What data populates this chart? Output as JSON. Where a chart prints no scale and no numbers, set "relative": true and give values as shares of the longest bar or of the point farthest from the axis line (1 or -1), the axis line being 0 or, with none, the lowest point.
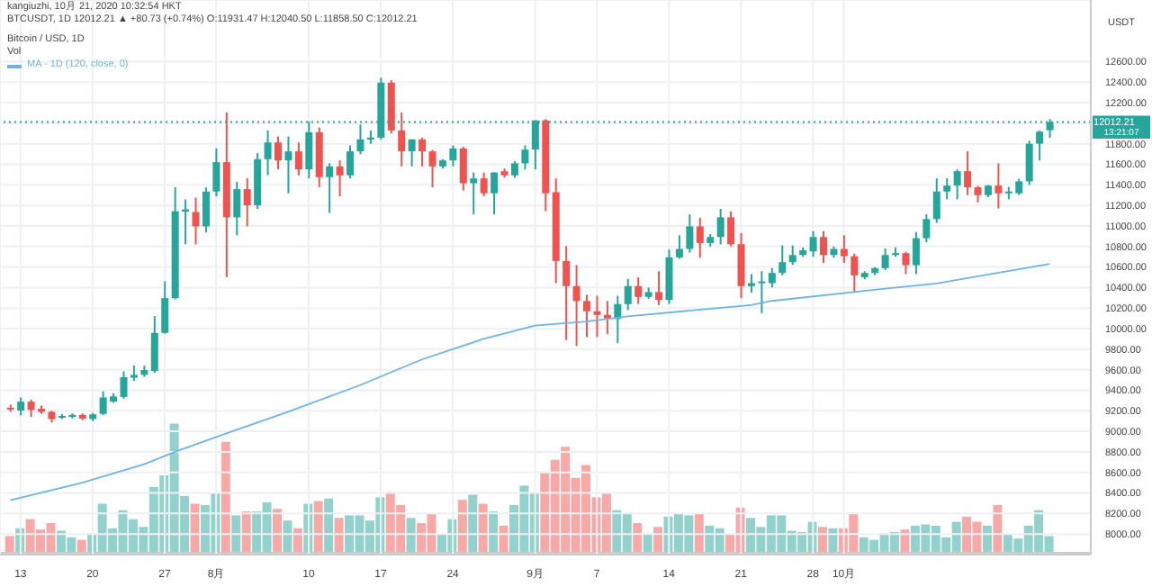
{
  "chart_data": [
    {
      "type": "candlestick",
      "title": "Bitcoin / USD, 1D",
      "ylabel": "USDT",
      "annotations": [
        "kangiuzhi, 10月 21, 2020 10:32:54 HKT",
        "BTCUSDT, 1D 12012.21 ▲ +80.73 (+0.74%) O:11931.47 H:12040.50 L:11858.50 C:12012.21",
        "Vol",
        "13:21:07"
      ],
      "x": [
        "2020-07-12",
        "2020-07-13",
        "2020-07-14",
        "2020-07-15",
        "2020-07-16",
        "2020-07-17",
        "2020-07-18",
        "2020-07-19",
        "2020-07-20",
        "2020-07-21",
        "2020-07-22",
        "2020-07-23",
        "2020-07-24",
        "2020-07-25",
        "2020-07-26",
        "2020-07-27",
        "2020-07-28",
        "2020-07-29",
        "2020-07-30",
        "2020-07-31",
        "2020-08-01",
        "2020-08-02",
        "2020-08-03",
        "2020-08-04",
        "2020-08-05",
        "2020-08-06",
        "2020-08-07",
        "2020-08-08",
        "2020-08-09",
        "2020-08-10",
        "2020-08-11",
        "2020-08-12",
        "2020-08-13",
        "2020-08-14",
        "2020-08-15",
        "2020-08-16",
        "2020-08-17",
        "2020-08-18",
        "2020-08-19",
        "2020-08-20",
        "2020-08-21",
        "2020-08-22",
        "2020-08-23",
        "2020-08-24",
        "2020-08-25",
        "2020-08-26",
        "2020-08-27",
        "2020-08-28",
        "2020-08-29",
        "2020-08-30",
        "2020-08-31",
        "2020-09-01",
        "2020-09-02",
        "2020-09-03",
        "2020-09-04",
        "2020-09-05",
        "2020-09-06",
        "2020-09-07",
        "2020-09-08",
        "2020-09-09",
        "2020-09-10",
        "2020-09-11",
        "2020-09-12",
        "2020-09-13",
        "2020-09-14",
        "2020-09-15",
        "2020-09-16",
        "2020-09-17",
        "2020-09-18",
        "2020-09-19",
        "2020-09-20",
        "2020-09-21",
        "2020-09-22",
        "2020-09-23",
        "2020-09-24",
        "2020-09-25",
        "2020-09-26",
        "2020-09-27",
        "2020-09-28",
        "2020-09-29",
        "2020-09-30",
        "2020-10-01",
        "2020-10-02",
        "2020-10-03",
        "2020-10-04",
        "2020-10-05",
        "2020-10-06",
        "2020-10-07",
        "2020-10-08",
        "2020-10-09",
        "2020-10-10",
        "2020-10-11",
        "2020-10-12",
        "2020-10-13",
        "2020-10-14",
        "2020-10-15",
        "2020-10-16",
        "2020-10-17",
        "2020-10-18",
        "2020-10-19",
        "2020-10-20",
        "2020-10-21"
      ],
      "ohlc": [
        [
          9230,
          9260,
          9190,
          9224
        ],
        [
          9202,
          9330,
          9155,
          9289
        ],
        [
          9289,
          9310,
          9140,
          9210
        ],
        [
          9220,
          9250,
          9170,
          9190
        ],
        [
          9190,
          9200,
          9085,
          9120
        ],
        [
          9140,
          9170,
          9120,
          9150
        ],
        [
          9140,
          9175,
          9125,
          9160
        ],
        [
          9160,
          9175,
          9110,
          9125
        ],
        [
          9120,
          9180,
          9100,
          9165
        ],
        [
          9170,
          9390,
          9160,
          9330
        ],
        [
          9290,
          9370,
          9280,
          9340
        ],
        [
          9335,
          9584,
          9318,
          9527
        ],
        [
          9522,
          9640,
          9490,
          9550
        ],
        [
          9550,
          9640,
          9530,
          9597
        ],
        [
          9587,
          10122,
          9570,
          9959
        ],
        [
          9959,
          10461,
          9950,
          10297
        ],
        [
          10297,
          11376,
          10285,
          11143
        ],
        [
          11140,
          11259,
          10821,
          11161
        ],
        [
          11136,
          11276,
          10821,
          10996
        ],
        [
          10996,
          11376,
          10938,
          11335
        ],
        [
          11335,
          11755,
          11288,
          11621
        ],
        [
          11621,
          12105,
          10501,
          11084
        ],
        [
          11084,
          11430,
          10909,
          11358
        ],
        [
          11358,
          11464,
          10996,
          11201
        ],
        [
          11201,
          11708,
          11166,
          11650
        ],
        [
          11650,
          11930,
          11493,
          11813
        ],
        [
          11813,
          11872,
          11551,
          11638
        ],
        [
          11638,
          11872,
          11318,
          11726
        ],
        [
          11726,
          11813,
          11493,
          11551
        ],
        [
          11551,
          12018,
          11463,
          11913
        ],
        [
          11913,
          11959,
          11376,
          11475
        ],
        [
          11475,
          11610,
          11126,
          11580
        ],
        [
          11580,
          11639,
          11288,
          11493
        ],
        [
          11493,
          11784,
          11463,
          11726
        ],
        [
          11726,
          11988,
          11697,
          11843
        ],
        [
          11840,
          11930,
          11800,
          11860
        ],
        [
          11860,
          12443,
          11840,
          12395
        ],
        [
          12395,
          12420,
          11900,
          11930
        ],
        [
          11930,
          12105,
          11580,
          11726
        ],
        [
          11726,
          11843,
          11580,
          11843
        ],
        [
          11843,
          11860,
          11580,
          11726
        ],
        [
          11726,
          11740,
          11376,
          11580
        ],
        [
          11580,
          11650,
          11560,
          11638
        ],
        [
          11638,
          11784,
          11580,
          11755
        ],
        [
          11755,
          11770,
          11346,
          11416
        ],
        [
          11416,
          11520,
          11113,
          11463
        ],
        [
          11463,
          11520,
          11290,
          11318
        ],
        [
          11318,
          11521,
          11113,
          11521
        ],
        [
          11533,
          11560,
          11470,
          11493
        ],
        [
          11493,
          11630,
          11470,
          11610
        ],
        [
          11610,
          11784,
          11550,
          11743
        ],
        [
          11743,
          12028,
          11550,
          12028
        ],
        [
          12028,
          12040,
          11143,
          11318
        ],
        [
          11329,
          11463,
          10443,
          10659
        ],
        [
          10659,
          10804,
          9889,
          10414
        ],
        [
          10414,
          10618,
          9831,
          10269
        ],
        [
          10269,
          10330,
          9918,
          10169
        ],
        [
          10169,
          10320,
          9918,
          10134
        ],
        [
          10134,
          10269,
          9947,
          10100
        ],
        [
          10094,
          10320,
          9859,
          10239
        ],
        [
          10239,
          10485,
          10180,
          10414
        ],
        [
          10414,
          10500,
          10240,
          10309
        ],
        [
          10309,
          10400,
          10290,
          10356
        ],
        [
          10356,
          10560,
          10230,
          10280
        ],
        [
          10280,
          10770,
          10240,
          10694
        ],
        [
          10694,
          10910,
          10680,
          10776
        ],
        [
          10776,
          11113,
          10740,
          10996
        ],
        [
          10996,
          11080,
          10690,
          10834
        ],
        [
          10834,
          10920,
          10800,
          10892
        ],
        [
          10892,
          11166,
          10820,
          11084
        ],
        [
          11084,
          11140,
          10800,
          10822
        ],
        [
          10822,
          10930,
          10297,
          10414
        ],
        [
          10414,
          10530,
          10350,
          10443
        ],
        [
          10443,
          10560,
          10151,
          10460
        ],
        [
          10443,
          10590,
          10400,
          10542
        ],
        [
          10542,
          10810,
          10520,
          10647
        ],
        [
          10647,
          10810,
          10620,
          10717
        ],
        [
          10717,
          10790,
          10700,
          10764
        ],
        [
          10752,
          10950,
          10700,
          10892
        ],
        [
          10892,
          10950,
          10640,
          10717
        ],
        [
          10717,
          10800,
          10690,
          10776
        ],
        [
          10776,
          10910,
          10640,
          10705
        ],
        [
          10705,
          10730,
          10356,
          10519
        ],
        [
          10501,
          10560,
          10480,
          10542
        ],
        [
          10542,
          10600,
          10520,
          10589
        ],
        [
          10589,
          10780,
          10570,
          10717
        ],
        [
          10717,
          10792,
          10700,
          10735
        ],
        [
          10735,
          10750,
          10530,
          10618
        ],
        [
          10618,
          10940,
          10530,
          10881
        ],
        [
          10881,
          11113,
          10840,
          11067
        ],
        [
          11067,
          11463,
          11030,
          11335
        ],
        [
          11335,
          11463,
          11260,
          11393
        ],
        [
          11393,
          11550,
          11259,
          11533
        ],
        [
          11533,
          11726,
          11300,
          11376
        ],
        [
          11376,
          11390,
          11230,
          11300
        ],
        [
          11300,
          11400,
          11280,
          11393
        ],
        [
          11393,
          11609,
          11171,
          11318
        ],
        [
          11318,
          11380,
          11260,
          11335
        ],
        [
          11318,
          11460,
          11300,
          11434
        ],
        [
          11434,
          11830,
          11400,
          11801
        ],
        [
          11801,
          11930,
          11638,
          11918
        ],
        [
          11931.47,
          12040.5,
          11858.5,
          12012.21
        ]
      ],
      "series": [
        {
          "type": "line",
          "name": "MA - 1D (120, close, 0)",
          "color": "#6fb3e6",
          "x": [
            "2020-07-12",
            "2020-07-19",
            "2020-07-25",
            "2020-07-28",
            "2020-08-02",
            "2020-08-08",
            "2020-08-15",
            "2020-08-21",
            "2020-08-27",
            "2020-09-01",
            "2020-09-06",
            "2020-09-10",
            "2020-09-22",
            "2020-09-24",
            "2020-10-05",
            "2020-10-10",
            "2020-10-21"
          ],
          "values": [
            8330,
            8500,
            8680,
            8800,
            8980,
            9190,
            9450,
            9700,
            9900,
            10030,
            10070,
            10120,
            10230,
            10270,
            10390,
            10440,
            10630
          ]
        }
      ],
      "xlim": [
        "2020-07-11",
        "2020-10-25"
      ],
      "xticks": [
        {
          "value": "2020-07-13",
          "label": "13"
        },
        {
          "value": "2020-07-20",
          "label": "20"
        },
        {
          "value": "2020-07-27",
          "label": "27"
        },
        {
          "value": "2020-08-01",
          "label": "8月"
        },
        {
          "value": "2020-08-10",
          "label": "10"
        },
        {
          "value": "2020-08-17",
          "label": "17"
        },
        {
          "value": "2020-08-24",
          "label": "24"
        },
        {
          "value": "2020-09-01",
          "label": "9月"
        },
        {
          "value": "2020-09-07",
          "label": "7"
        },
        {
          "value": "2020-09-14",
          "label": "14"
        },
        {
          "value": "2020-09-21",
          "label": "21"
        },
        {
          "value": "2020-09-28",
          "label": "28"
        },
        {
          "value": "2020-10-01",
          "label": "10月"
        }
      ],
      "ylim": [
        7800,
        13200
      ],
      "yticks": [
        {
          "value": 8000,
          "label": "8000.00"
        },
        {
          "value": 8200,
          "label": "8200.00"
        },
        {
          "value": 8400,
          "label": "8400.00"
        },
        {
          "value": 8600,
          "label": "8600.00"
        },
        {
          "value": 8800,
          "label": "8800.00"
        },
        {
          "value": 9000,
          "label": "9000.00"
        },
        {
          "value": 9200,
          "label": "9200.00"
        },
        {
          "value": 9400,
          "label": "9400.00"
        },
        {
          "value": 9600,
          "label": "9600.00"
        },
        {
          "value": 9800,
          "label": "9800.00"
        },
        {
          "value": 10000,
          "label": "10000.00"
        },
        {
          "value": 10200,
          "label": "10200.00"
        },
        {
          "value": 10400,
          "label": "10400.00"
        },
        {
          "value": 10600,
          "label": "10600.00"
        },
        {
          "value": 10800,
          "label": "10800.00"
        },
        {
          "value": 11000,
          "label": "11000.00"
        },
        {
          "value": 11200,
          "label": "11200.00"
        },
        {
          "value": 11400,
          "label": "11400.00"
        },
        {
          "value": 11600,
          "label": "11600.00"
        },
        {
          "value": 11800,
          "label": "11800.00"
        },
        {
          "value": 12000,
          "label": null
        },
        {
          "value": 12200,
          "label": "12200.00"
        },
        {
          "value": 12400,
          "label": "12400.00"
        },
        {
          "value": 12600,
          "label": "12600.00"
        }
      ],
      "ref_lines": [
        {
          "axis": "y",
          "value": 12012.21,
          "label": "12012.21",
          "color": "#26a69a",
          "line_style": "dotted"
        }
      ],
      "grid": true,
      "legend": "top left"
    },
    {
      "type": "bar",
      "relative": true,
      "tick_labels": false,
      "x": [
        "2020-07-12",
        "2020-07-13",
        "2020-07-14",
        "2020-07-15",
        "2020-07-16",
        "2020-07-17",
        "2020-07-18",
        "2020-07-19",
        "2020-07-20",
        "2020-07-21",
        "2020-07-22",
        "2020-07-23",
        "2020-07-24",
        "2020-07-25",
        "2020-07-26",
        "2020-07-27",
        "2020-07-28",
        "2020-07-29",
        "2020-07-30",
        "2020-07-31",
        "2020-08-01",
        "2020-08-02",
        "2020-08-03",
        "2020-08-04",
        "2020-08-05",
        "2020-08-06",
        "2020-08-07",
        "2020-08-08",
        "2020-08-09",
        "2020-08-10",
        "2020-08-11",
        "2020-08-12",
        "2020-08-13",
        "2020-08-14",
        "2020-08-15",
        "2020-08-16",
        "2020-08-17",
        "2020-08-18",
        "2020-08-19",
        "2020-08-20",
        "2020-08-21",
        "2020-08-22",
        "2020-08-23",
        "2020-08-24",
        "2020-08-25",
        "2020-08-26",
        "2020-08-27",
        "2020-08-28",
        "2020-08-29",
        "2020-08-30",
        "2020-08-31",
        "2020-09-01",
        "2020-09-02",
        "2020-09-03",
        "2020-09-04",
        "2020-09-05",
        "2020-09-06",
        "2020-09-07",
        "2020-09-08",
        "2020-09-09",
        "2020-09-10",
        "2020-09-11",
        "2020-09-12",
        "2020-09-13",
        "2020-09-14",
        "2020-09-15",
        "2020-09-16",
        "2020-09-17",
        "2020-09-18",
        "2020-09-19",
        "2020-09-20",
        "2020-09-21",
        "2020-09-22",
        "2020-09-23",
        "2020-09-24",
        "2020-09-25",
        "2020-09-26",
        "2020-09-27",
        "2020-09-28",
        "2020-09-29",
        "2020-09-30",
        "2020-10-01",
        "2020-10-02",
        "2020-10-03",
        "2020-10-04",
        "2020-10-05",
        "2020-10-06",
        "2020-10-07",
        "2020-10-08",
        "2020-10-09",
        "2020-10-10",
        "2020-10-11",
        "2020-10-12",
        "2020-10-13",
        "2020-10-14",
        "2020-10-15",
        "2020-10-16",
        "2020-10-17",
        "2020-10-18",
        "2020-10-19",
        "2020-10-20",
        "2020-10-21"
      ],
      "xlim": [
        "2020-07-11",
        "2020-10-25"
      ],
      "values": [
        0.13,
        0.19,
        0.26,
        0.18,
        0.23,
        0.17,
        0.12,
        0.1,
        0.15,
        0.38,
        0.19,
        0.33,
        0.26,
        0.2,
        0.51,
        0.6,
        1.0,
        0.44,
        0.38,
        0.37,
        0.46,
        0.86,
        0.29,
        0.32,
        0.32,
        0.39,
        0.34,
        0.25,
        0.19,
        0.38,
        0.4,
        0.42,
        0.27,
        0.29,
        0.29,
        0.25,
        0.43,
        0.47,
        0.37,
        0.27,
        0.23,
        0.3,
        0.14,
        0.26,
        0.41,
        0.45,
        0.38,
        0.32,
        0.21,
        0.37,
        0.52,
        0.46,
        0.62,
        0.72,
        0.82,
        0.58,
        0.68,
        0.43,
        0.46,
        0.33,
        0.31,
        0.23,
        0.14,
        0.2,
        0.28,
        0.3,
        0.29,
        0.3,
        0.21,
        0.19,
        0.14,
        0.35,
        0.27,
        0.2,
        0.29,
        0.29,
        0.17,
        0.16,
        0.24,
        0.2,
        0.19,
        0.19,
        0.31,
        0.12,
        0.1,
        0.15,
        0.16,
        0.18,
        0.21,
        0.22,
        0.21,
        0.12,
        0.24,
        0.28,
        0.24,
        0.21,
        0.37,
        0.14,
        0.11,
        0.21,
        0.33,
        0.13
      ],
      "colors": [
        "#f7a9a7",
        "#93d2cc",
        "#f7a9a7",
        "#f7a9a7",
        "#f7a9a7",
        "#93d2cc",
        "#93d2cc",
        "#f7a9a7",
        "#93d2cc",
        "#93d2cc",
        "#93d2cc",
        "#93d2cc",
        "#93d2cc",
        "#93d2cc",
        "#93d2cc",
        "#93d2cc",
        "#93d2cc",
        "#93d2cc",
        "#f7a9a7",
        "#93d2cc",
        "#93d2cc",
        "#f7a9a7",
        "#93d2cc",
        "#f7a9a7",
        "#93d2cc",
        "#93d2cc",
        "#f7a9a7",
        "#93d2cc",
        "#f7a9a7",
        "#93d2cc",
        "#f7a9a7",
        "#93d2cc",
        "#f7a9a7",
        "#93d2cc",
        "#93d2cc",
        "#93d2cc",
        "#93d2cc",
        "#f7a9a7",
        "#f7a9a7",
        "#93d2cc",
        "#f7a9a7",
        "#f7a9a7",
        "#93d2cc",
        "#93d2cc",
        "#f7a9a7",
        "#93d2cc",
        "#f7a9a7",
        "#93d2cc",
        "#f7a9a7",
        "#93d2cc",
        "#93d2cc",
        "#93d2cc",
        "#f7a9a7",
        "#f7a9a7",
        "#f7a9a7",
        "#f7a9a7",
        "#f7a9a7",
        "#f7a9a7",
        "#f7a9a7",
        "#93d2cc",
        "#93d2cc",
        "#f7a9a7",
        "#93d2cc",
        "#f7a9a7",
        "#93d2cc",
        "#93d2cc",
        "#93d2cc",
        "#f7a9a7",
        "#93d2cc",
        "#93d2cc",
        "#f7a9a7",
        "#f7a9a7",
        "#93d2cc",
        "#93d2cc",
        "#93d2cc",
        "#93d2cc",
        "#93d2cc",
        "#93d2cc",
        "#93d2cc",
        "#f7a9a7",
        "#93d2cc",
        "#f7a9a7",
        "#f7a9a7",
        "#93d2cc",
        "#93d2cc",
        "#93d2cc",
        "#93d2cc",
        "#f7a9a7",
        "#93d2cc",
        "#93d2cc",
        "#93d2cc",
        "#93d2cc",
        "#93d2cc",
        "#f7a9a7",
        "#f7a9a7",
        "#93d2cc",
        "#f7a9a7",
        "#93d2cc",
        "#93d2cc",
        "#93d2cc",
        "#93d2cc",
        "#93d2cc"
      ]
    }
  ]
}
